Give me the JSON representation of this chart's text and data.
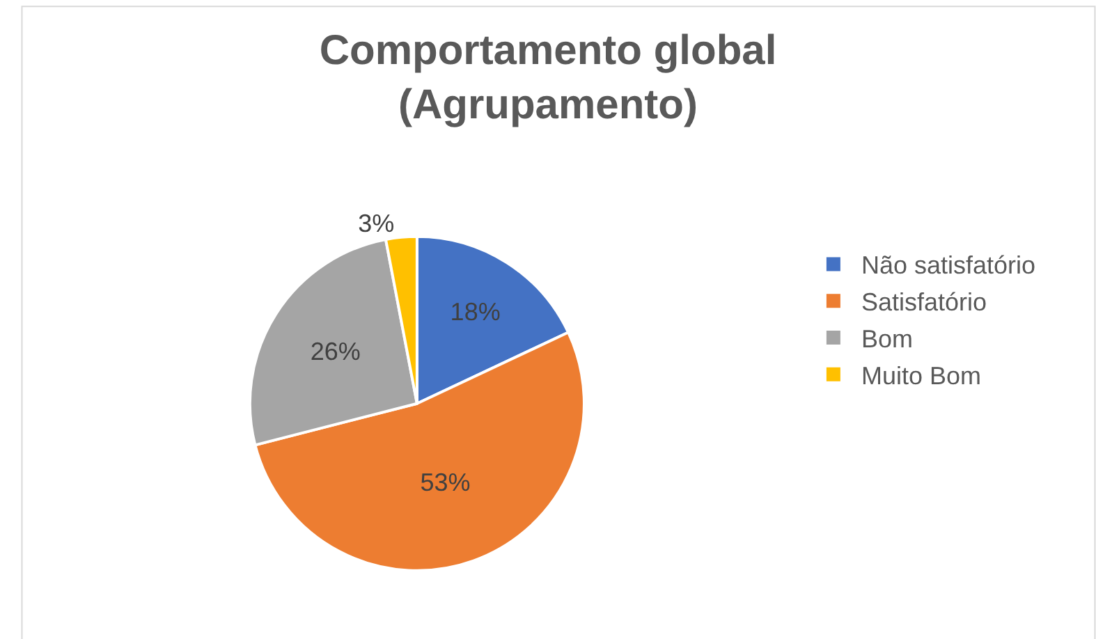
{
  "chart_data": {
    "type": "pie",
    "title": "Comportamento global\n(Agrupamento)",
    "categories": [
      "Não satisfatório",
      "Satisfatório",
      "Bom",
      "Muito Bom"
    ],
    "values": [
      18,
      53,
      26,
      3
    ],
    "colors": [
      "#4472c4",
      "#ed7d31",
      "#a5a5a5",
      "#ffc000"
    ],
    "value_labels": [
      "18%",
      "53%",
      "26%",
      "3%"
    ],
    "legend": "right"
  }
}
